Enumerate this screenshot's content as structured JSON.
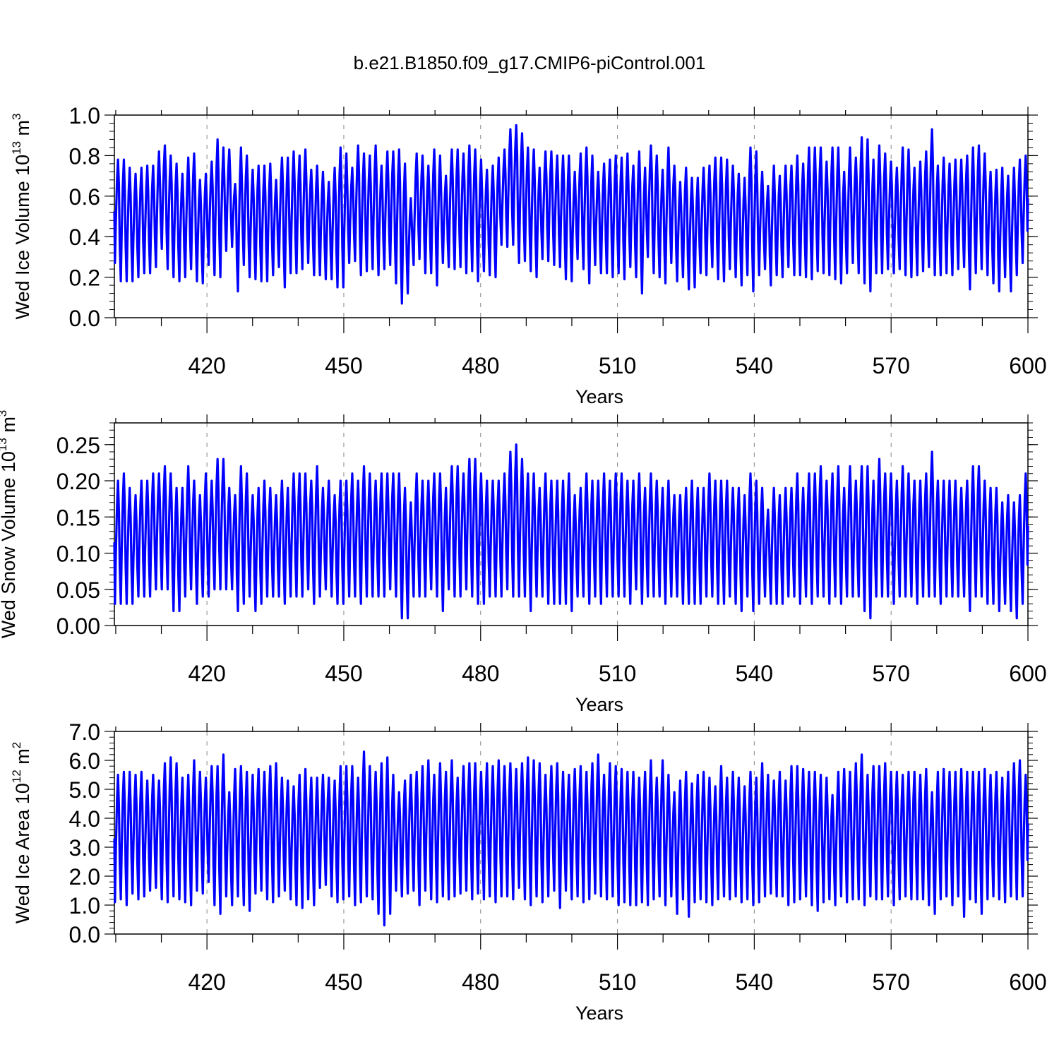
{
  "title": "b.e21.B1850.f09_g17.CMIP6-piControl.001",
  "series_color": "#0000ff",
  "chart_data": [
    {
      "type": "line",
      "ylabel_prefix": "Wed Ice Volume 10",
      "ylabel_exp": "13",
      "ylabel_unit": " m",
      "ylabel_unit_exp": "3",
      "xlabel": "Years",
      "xlim": [
        400,
        600
      ],
      "ylim": [
        0,
        1.0
      ],
      "x_ticks": [
        420,
        450,
        480,
        510,
        540,
        570,
        600
      ],
      "y_ticks": [
        "0.0",
        "0.2",
        "0.4",
        "0.6",
        "0.8",
        "1.0"
      ],
      "y_tick_values": [
        0,
        0.2,
        0.4,
        0.6,
        0.8,
        1.0
      ],
      "annual_max": [
        0.78,
        0.78,
        0.74,
        0.71,
        0.74,
        0.75,
        0.75,
        0.82,
        0.85,
        0.8,
        0.76,
        0.71,
        0.79,
        0.81,
        0.68,
        0.71,
        0.77,
        0.88,
        0.84,
        0.83,
        0.66,
        0.84,
        0.8,
        0.73,
        0.75,
        0.75,
        0.76,
        0.68,
        0.79,
        0.79,
        0.82,
        0.8,
        0.83,
        0.73,
        0.75,
        0.72,
        0.67,
        0.74,
        0.84,
        0.81,
        0.74,
        0.85,
        0.81,
        0.8,
        0.85,
        0.75,
        0.82,
        0.82,
        0.83,
        0.76,
        0.59,
        0.81,
        0.8,
        0.75,
        0.83,
        0.8,
        0.7,
        0.83,
        0.83,
        0.81,
        0.85,
        0.83,
        0.78,
        0.73,
        0.75,
        0.79,
        0.83,
        0.93,
        0.95,
        0.91,
        0.84,
        0.83,
        0.74,
        0.82,
        0.82,
        0.8,
        0.8,
        0.8,
        0.72,
        0.81,
        0.84,
        0.8,
        0.72,
        0.76,
        0.78,
        0.8,
        0.79,
        0.81,
        0.75,
        0.82,
        0.74,
        0.85,
        0.8,
        0.73,
        0.84,
        0.75,
        0.67,
        0.74,
        0.69,
        0.69,
        0.74,
        0.75,
        0.79,
        0.79,
        0.78,
        0.75,
        0.71,
        0.69,
        0.84,
        0.82,
        0.72,
        0.65,
        0.75,
        0.7,
        0.75,
        0.75,
        0.8,
        0.76,
        0.84,
        0.84,
        0.84,
        0.77,
        0.84,
        0.84,
        0.72,
        0.84,
        0.79,
        0.89,
        0.88,
        0.78,
        0.85,
        0.81,
        0.77,
        0.74,
        0.84,
        0.83,
        0.74,
        0.77,
        0.82,
        0.93,
        0.75,
        0.79,
        0.76,
        0.78,
        0.78,
        0.8,
        0.84,
        0.85,
        0.81,
        0.72,
        0.73,
        0.74,
        0.7,
        0.74,
        0.78,
        0.8
      ],
      "annual_min": [
        0.27,
        0.18,
        0.18,
        0.18,
        0.2,
        0.22,
        0.22,
        0.25,
        0.34,
        0.24,
        0.2,
        0.18,
        0.2,
        0.24,
        0.18,
        0.17,
        0.26,
        0.21,
        0.2,
        0.33,
        0.35,
        0.13,
        0.26,
        0.2,
        0.19,
        0.18,
        0.18,
        0.21,
        0.25,
        0.15,
        0.22,
        0.22,
        0.24,
        0.27,
        0.21,
        0.21,
        0.19,
        0.19,
        0.15,
        0.15,
        0.27,
        0.28,
        0.21,
        0.23,
        0.24,
        0.21,
        0.24,
        0.26,
        0.17,
        0.07,
        0.12,
        0.26,
        0.29,
        0.22,
        0.22,
        0.16,
        0.27,
        0.25,
        0.24,
        0.25,
        0.22,
        0.23,
        0.18,
        0.23,
        0.21,
        0.2,
        0.36,
        0.35,
        0.36,
        0.27,
        0.28,
        0.23,
        0.2,
        0.29,
        0.28,
        0.26,
        0.25,
        0.19,
        0.18,
        0.29,
        0.24,
        0.17,
        0.26,
        0.22,
        0.22,
        0.2,
        0.22,
        0.19,
        0.25,
        0.2,
        0.12,
        0.3,
        0.22,
        0.2,
        0.17,
        0.27,
        0.18,
        0.2,
        0.14,
        0.15,
        0.22,
        0.21,
        0.25,
        0.19,
        0.18,
        0.24,
        0.2,
        0.16,
        0.21,
        0.13,
        0.21,
        0.24,
        0.16,
        0.21,
        0.2,
        0.25,
        0.21,
        0.21,
        0.2,
        0.19,
        0.23,
        0.22,
        0.21,
        0.19,
        0.17,
        0.22,
        0.27,
        0.22,
        0.17,
        0.13,
        0.22,
        0.22,
        0.24,
        0.22,
        0.24,
        0.21,
        0.2,
        0.21,
        0.23,
        0.25,
        0.21,
        0.21,
        0.22,
        0.21,
        0.24,
        0.25,
        0.14,
        0.22,
        0.24,
        0.21,
        0.17,
        0.13,
        0.2,
        0.13,
        0.21,
        0.27
      ]
    },
    {
      "type": "line",
      "ylabel_prefix": "Wed Snow Volume 10",
      "ylabel_exp": "13",
      "ylabel_unit": " m",
      "ylabel_unit_exp": "3",
      "xlabel": "Years",
      "xlim": [
        400,
        600
      ],
      "ylim": [
        0,
        0.28
      ],
      "x_ticks": [
        420,
        450,
        480,
        510,
        540,
        570,
        600
      ],
      "y_ticks": [
        "0.00",
        "0.05",
        "0.10",
        "0.15",
        "0.20",
        "0.25"
      ],
      "y_tick_values": [
        0,
        0.05,
        0.1,
        0.15,
        0.2,
        0.25
      ],
      "annual_max": [
        0.2,
        0.21,
        0.19,
        0.18,
        0.2,
        0.2,
        0.21,
        0.21,
        0.22,
        0.21,
        0.19,
        0.19,
        0.22,
        0.2,
        0.18,
        0.21,
        0.2,
        0.23,
        0.23,
        0.19,
        0.18,
        0.22,
        0.21,
        0.18,
        0.19,
        0.2,
        0.19,
        0.18,
        0.2,
        0.19,
        0.21,
        0.21,
        0.21,
        0.2,
        0.22,
        0.19,
        0.2,
        0.18,
        0.2,
        0.2,
        0.21,
        0.2,
        0.22,
        0.21,
        0.2,
        0.21,
        0.21,
        0.21,
        0.21,
        0.19,
        0.17,
        0.21,
        0.2,
        0.2,
        0.21,
        0.21,
        0.19,
        0.22,
        0.22,
        0.21,
        0.23,
        0.23,
        0.21,
        0.2,
        0.2,
        0.2,
        0.21,
        0.24,
        0.25,
        0.23,
        0.21,
        0.21,
        0.19,
        0.21,
        0.2,
        0.2,
        0.2,
        0.21,
        0.18,
        0.19,
        0.21,
        0.2,
        0.2,
        0.21,
        0.2,
        0.21,
        0.21,
        0.2,
        0.2,
        0.21,
        0.19,
        0.21,
        0.2,
        0.19,
        0.2,
        0.18,
        0.18,
        0.19,
        0.2,
        0.19,
        0.19,
        0.21,
        0.2,
        0.2,
        0.2,
        0.19,
        0.19,
        0.18,
        0.21,
        0.2,
        0.19,
        0.16,
        0.19,
        0.18,
        0.19,
        0.19,
        0.21,
        0.19,
        0.21,
        0.21,
        0.22,
        0.2,
        0.21,
        0.22,
        0.19,
        0.22,
        0.2,
        0.22,
        0.22,
        0.2,
        0.23,
        0.21,
        0.21,
        0.2,
        0.22,
        0.21,
        0.2,
        0.2,
        0.21,
        0.24,
        0.2,
        0.2,
        0.2,
        0.2,
        0.19,
        0.2,
        0.22,
        0.22,
        0.2,
        0.19,
        0.19,
        0.17,
        0.18,
        0.17,
        0.18,
        0.21
      ],
      "annual_min": [
        0.03,
        0.03,
        0.03,
        0.03,
        0.04,
        0.04,
        0.04,
        0.05,
        0.05,
        0.05,
        0.02,
        0.02,
        0.04,
        0.05,
        0.03,
        0.04,
        0.04,
        0.05,
        0.05,
        0.05,
        0.05,
        0.02,
        0.03,
        0.04,
        0.02,
        0.03,
        0.04,
        0.04,
        0.04,
        0.03,
        0.04,
        0.04,
        0.04,
        0.05,
        0.03,
        0.04,
        0.05,
        0.04,
        0.03,
        0.03,
        0.04,
        0.04,
        0.03,
        0.04,
        0.04,
        0.04,
        0.04,
        0.05,
        0.04,
        0.01,
        0.01,
        0.04,
        0.04,
        0.04,
        0.05,
        0.04,
        0.02,
        0.05,
        0.04,
        0.04,
        0.05,
        0.04,
        0.03,
        0.03,
        0.04,
        0.04,
        0.04,
        0.05,
        0.04,
        0.04,
        0.04,
        0.02,
        0.04,
        0.04,
        0.03,
        0.03,
        0.03,
        0.03,
        0.02,
        0.04,
        0.04,
        0.03,
        0.04,
        0.03,
        0.04,
        0.04,
        0.04,
        0.04,
        0.03,
        0.05,
        0.03,
        0.04,
        0.04,
        0.04,
        0.03,
        0.04,
        0.04,
        0.03,
        0.03,
        0.03,
        0.03,
        0.04,
        0.04,
        0.03,
        0.03,
        0.04,
        0.03,
        0.02,
        0.04,
        0.02,
        0.03,
        0.04,
        0.03,
        0.03,
        0.03,
        0.04,
        0.04,
        0.03,
        0.04,
        0.03,
        0.04,
        0.04,
        0.03,
        0.04,
        0.03,
        0.04,
        0.04,
        0.04,
        0.02,
        0.01,
        0.04,
        0.04,
        0.04,
        0.03,
        0.04,
        0.04,
        0.04,
        0.03,
        0.04,
        0.04,
        0.04,
        0.03,
        0.04,
        0.04,
        0.04,
        0.04,
        0.02,
        0.04,
        0.04,
        0.03,
        0.03,
        0.02,
        0.03,
        0.02,
        0.01,
        0.03
      ]
    },
    {
      "type": "line",
      "ylabel_prefix": "Wed Ice Area 10",
      "ylabel_exp": "12",
      "ylabel_unit": " m",
      "ylabel_unit_exp": "2",
      "xlabel": "Years",
      "xlim": [
        400,
        600
      ],
      "ylim": [
        0,
        7.0
      ],
      "x_ticks": [
        420,
        450,
        480,
        510,
        540,
        570,
        600
      ],
      "y_ticks": [
        "0.0",
        "1.0",
        "2.0",
        "3.0",
        "4.0",
        "5.0",
        "6.0",
        "7.0"
      ],
      "y_tick_values": [
        0,
        1,
        2,
        3,
        4,
        5,
        6,
        7
      ],
      "annual_max": [
        5.5,
        5.6,
        5.6,
        5.5,
        5.6,
        5.3,
        5.5,
        5.3,
        5.9,
        6.1,
        5.9,
        5.4,
        5.5,
        6.0,
        5.6,
        5.4,
        5.8,
        5.8,
        6.2,
        4.9,
        5.7,
        5.8,
        5.6,
        5.5,
        5.7,
        5.6,
        5.8,
        5.9,
        5.4,
        5.3,
        5.1,
        5.5,
        5.7,
        5.4,
        5.4,
        5.5,
        5.4,
        5.3,
        5.8,
        5.8,
        5.8,
        5.4,
        6.3,
        5.8,
        5.6,
        5.9,
        6.1,
        5.5,
        4.9,
        5.3,
        5.5,
        5.6,
        5.8,
        6.0,
        5.5,
        5.9,
        5.6,
        6.0,
        5.4,
        5.8,
        5.9,
        5.9,
        5.6,
        5.9,
        5.8,
        6.0,
        5.8,
        5.9,
        5.7,
        5.9,
        6.1,
        6.0,
        5.9,
        5.5,
        5.8,
        5.9,
        5.6,
        5.5,
        5.7,
        5.8,
        5.6,
        5.9,
        6.2,
        5.5,
        5.9,
        5.8,
        5.7,
        5.6,
        5.6,
        5.4,
        5.6,
        6.0,
        5.4,
        6.0,
        5.5,
        4.9,
        5.3,
        5.6,
        5.2,
        5.5,
        5.6,
        5.4,
        5.1,
        5.8,
        5.4,
        5.6,
        5.4,
        5.1,
        5.6,
        5.4,
        5.9,
        5.5,
        5.3,
        5.6,
        5.3,
        5.8,
        5.8,
        5.7,
        5.6,
        5.6,
        5.5,
        5.4,
        4.8,
        5.6,
        5.7,
        5.6,
        5.9,
        6.2,
        5.5,
        5.8,
        5.8,
        5.9,
        5.6,
        5.6,
        5.5,
        5.6,
        5.6,
        5.5,
        5.7,
        4.9,
        5.6,
        5.7,
        5.6,
        5.6,
        5.7,
        5.6,
        5.6,
        5.6,
        5.7,
        5.5,
        5.6,
        5.4,
        5.6,
        5.9,
        6.0,
        5.5
      ],
      "annual_min": [
        1.1,
        1.2,
        1.0,
        1.4,
        1.2,
        1.3,
        1.5,
        1.6,
        1.2,
        1.1,
        1.3,
        1.2,
        1.1,
        1.0,
        1.5,
        1.4,
        1.8,
        1.0,
        0.7,
        1.3,
        1.0,
        1.3,
        1.0,
        0.8,
        1.4,
        1.5,
        1.2,
        1.1,
        1.3,
        1.5,
        1.2,
        1.0,
        0.9,
        1.2,
        1.0,
        1.6,
        1.7,
        1.3,
        1.1,
        1.2,
        1.3,
        1.0,
        1.1,
        1.3,
        1.2,
        0.7,
        0.3,
        0.7,
        1.5,
        1.3,
        1.4,
        1.5,
        1.0,
        1.5,
        1.2,
        1.1,
        1.3,
        1.2,
        1.3,
        1.4,
        1.5,
        1.2,
        1.4,
        1.2,
        1.3,
        1.1,
        1.3,
        1.3,
        1.2,
        1.6,
        1.2,
        1.0,
        1.3,
        1.1,
        1.3,
        1.5,
        0.9,
        1.5,
        1.2,
        1.3,
        1.1,
        1.2,
        1.4,
        1.3,
        1.2,
        1.3,
        1.0,
        1.1,
        1.0,
        1.0,
        1.1,
        1.0,
        1.2,
        1.3,
        1.0,
        1.3,
        0.7,
        1.2,
        0.6,
        1.1,
        1.2,
        1.1,
        1.0,
        1.2,
        1.3,
        1.2,
        1.3,
        1.1,
        1.2,
        1.0,
        1.1,
        1.3,
        1.4,
        1.3,
        1.3,
        1.0,
        1.1,
        1.2,
        1.3,
        1.0,
        0.8,
        1.1,
        1.2,
        1.0,
        1.3,
        1.1,
        1.2,
        1.2,
        1.0,
        1.3,
        1.2,
        1.2,
        1.3,
        1.0,
        1.2,
        1.3,
        1.2,
        1.2,
        1.2,
        1.0,
        0.7,
        1.2,
        1.3,
        1.0,
        1.3,
        0.6,
        1.2,
        1.1,
        0.7,
        1.2,
        1.3,
        1.2,
        1.1,
        1.3,
        1.2,
        1.3
      ]
    }
  ]
}
